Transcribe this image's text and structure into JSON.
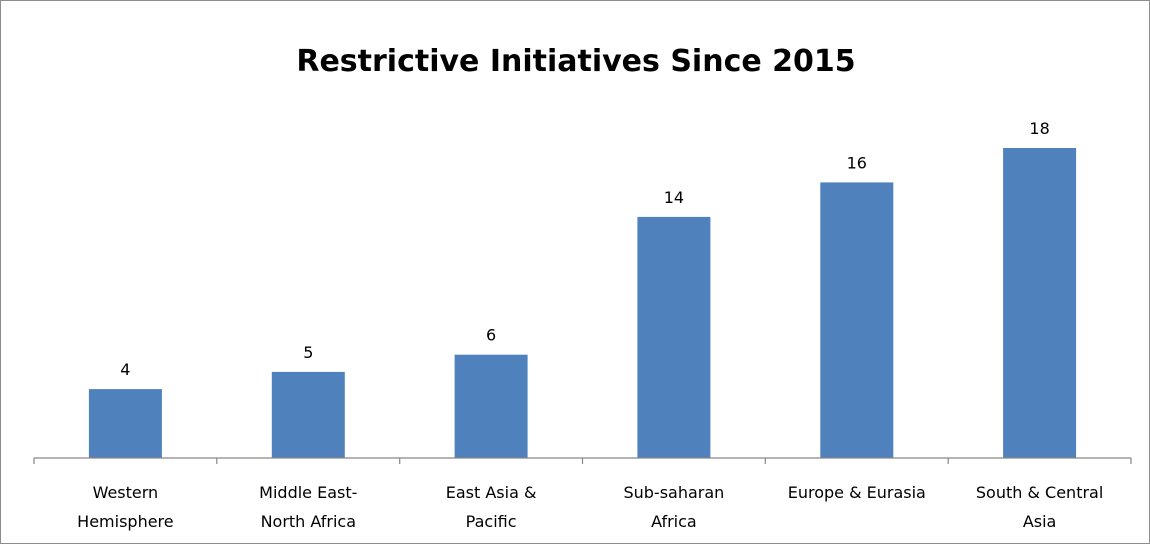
{
  "chart_data": {
    "type": "bar",
    "title": "Restrictive Initiatives Since 2015",
    "categories": [
      [
        "Western",
        "Hemisphere"
      ],
      [
        "Middle East-",
        "North Africa"
      ],
      [
        "East Asia &",
        "Pacific"
      ],
      [
        "Sub-saharan",
        "Africa"
      ],
      [
        "Europe & Eurasia"
      ],
      [
        "South & Central",
        "Asia"
      ]
    ],
    "values": [
      4,
      5,
      6,
      14,
      16,
      18
    ],
    "data_labels": [
      "4",
      "5",
      "6",
      "14",
      "16",
      "18"
    ],
    "ylim": [
      0,
      18
    ],
    "bar_color": "#4f81bd",
    "axis_color": "#868686",
    "grid": false,
    "legend": "none"
  }
}
